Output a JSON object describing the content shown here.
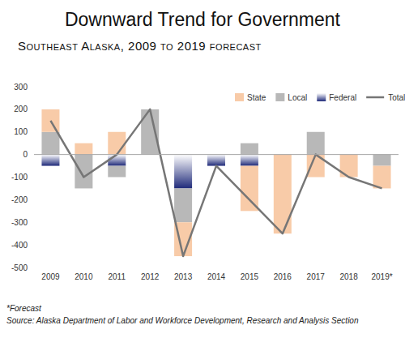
{
  "chart_data": {
    "type": "bar",
    "stacked": true,
    "title": "Downward Trend for Government",
    "subtitle": "Southeast Alaska, 2009 to 2019 forecast",
    "annotations": [
      "*Forecast",
      "Source: Alaska Department of Labor and Workforce Development, Research and Analysis Section"
    ],
    "categories": [
      "2009",
      "2010",
      "2011",
      "2012",
      "2013",
      "2014",
      "2015",
      "2016",
      "2017",
      "2018",
      "2019*"
    ],
    "series": [
      {
        "name": "State",
        "color": "#f8cba8",
        "values": [
          100,
          50,
          100,
          0,
          -150,
          0,
          -200,
          -350,
          -100,
          -100,
          -100
        ]
      },
      {
        "name": "Local",
        "color": "#b8b8b8",
        "values": [
          100,
          -150,
          -50,
          200,
          -150,
          0,
          50,
          0,
          100,
          0,
          -50
        ]
      },
      {
        "name": "Federal",
        "color": "#1f2a7a",
        "values": [
          -50,
          0,
          -50,
          0,
          -150,
          -50,
          -50,
          0,
          0,
          0,
          0
        ]
      },
      {
        "name": "Total",
        "type": "line",
        "color": "#767676",
        "values": [
          150,
          -100,
          0,
          200,
          -450,
          -50,
          -200,
          -350,
          0,
          -100,
          -150
        ]
      }
    ],
    "ylim": [
      -500,
      300
    ],
    "yticks": [
      -500,
      -400,
      -300,
      -200,
      -100,
      0,
      100,
      200,
      300
    ],
    "grid": false,
    "legend": "top"
  }
}
